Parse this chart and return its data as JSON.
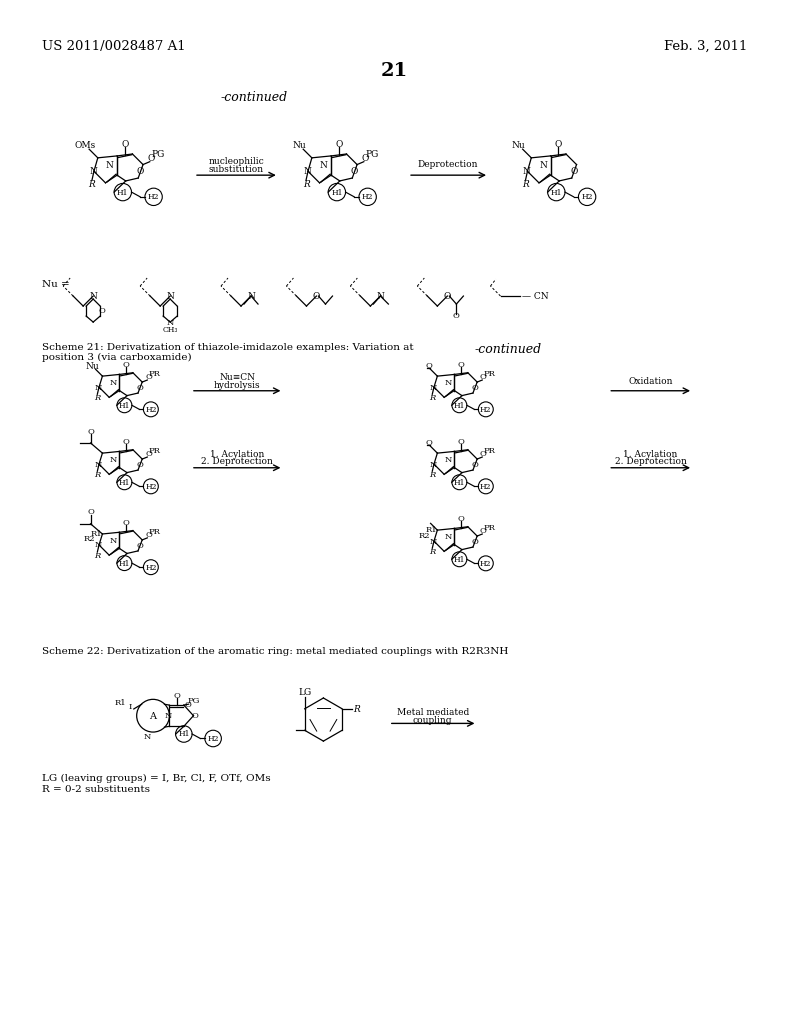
{
  "page_width": 10.24,
  "page_height": 13.2,
  "bg_color": "#ffffff",
  "header_left": "US 2011/0028487 A1",
  "header_right": "Feb. 3, 2011",
  "page_number": "21",
  "continued_top": "-continued",
  "continued_mid": "-continued",
  "scheme21_line1": "Scheme 21: Derivatization of thiazole-imidazole examples: Variation at",
  "scheme21_line2": "position 3 (via carboxamide)",
  "scheme22_line": "Scheme 22: Derivatization of the aromatic ring: metal mediated couplings with R2R3NH",
  "lg_note": "LG (leaving groups) = I, Br, Cl, F, OTf, OMs",
  "r_note": "R = 0-2 substituents",
  "arrow_nucl1": "nucleophilic",
  "arrow_nucl2": "substitution",
  "arrow_deprot": "Deprotection",
  "arrow_nu_cn": "Nu≡CN",
  "arrow_hydrol": "hydrolysis",
  "arrow_acyl1": "1. Acylation",
  "arrow_deprot2": "2. Deprotection",
  "arrow_oxidation": "Oxidation",
  "arrow_metal1": "Metal mediated",
  "arrow_metal2": "coupling",
  "nu_eq": "Nu ="
}
